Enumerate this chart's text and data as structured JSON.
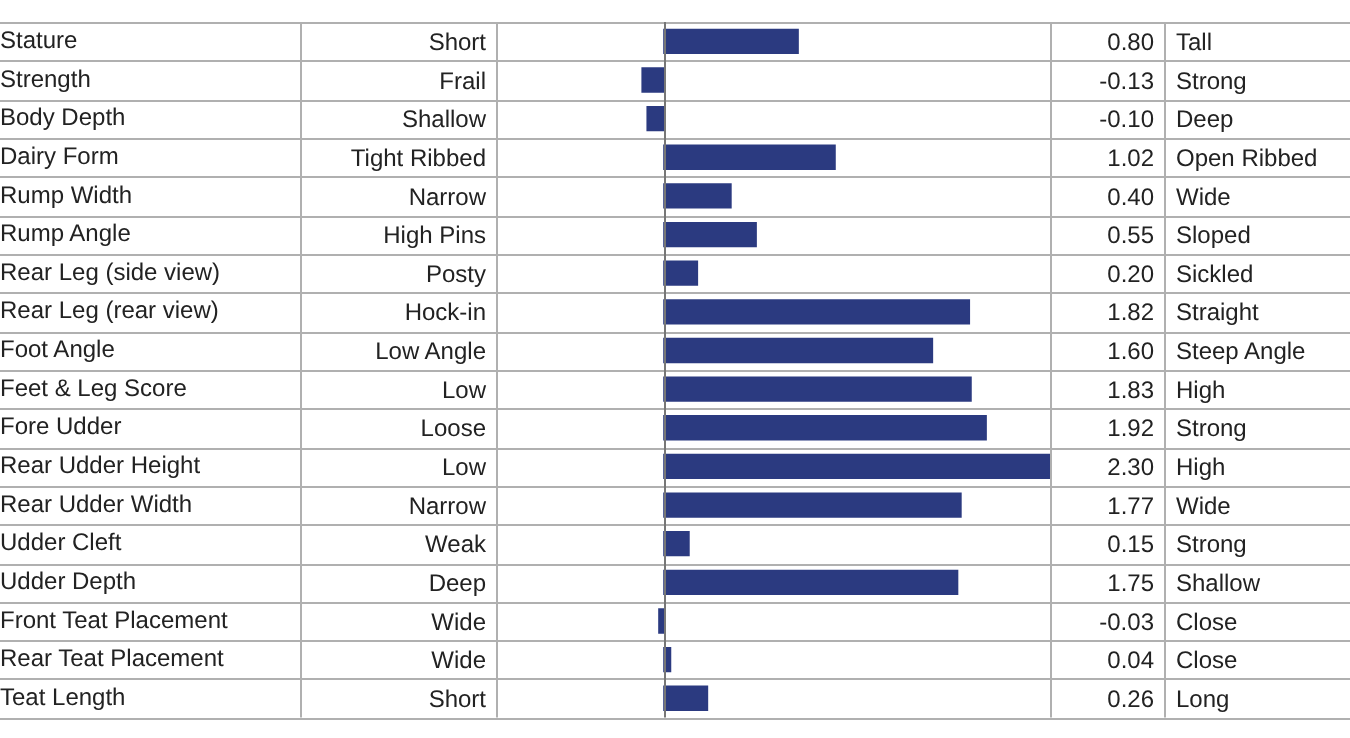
{
  "chart_data": {
    "type": "bar",
    "orientation": "horizontal",
    "categories": [
      "Stature",
      "Strength",
      "Body Depth",
      "Dairy Form",
      "Rump Width",
      "Rump Angle",
      "Rear Leg (side view)",
      "Rear Leg (rear view)",
      "Foot Angle",
      "Feet & Leg Score",
      "Fore Udder",
      "Rear Udder Height",
      "Rear Udder Width",
      "Udder Cleft",
      "Udder Depth",
      "Front Teat Placement",
      "Rear Teat Placement",
      "Teat Length"
    ],
    "values": [
      0.8,
      -0.13,
      -0.1,
      1.02,
      0.4,
      0.55,
      0.2,
      1.82,
      1.6,
      1.83,
      1.92,
      2.3,
      1.77,
      0.15,
      1.75,
      -0.03,
      0.04,
      0.26
    ],
    "value_labels": [
      "0.80",
      "-0.13",
      "-0.10",
      "1.02",
      "0.40",
      "0.55",
      "0.20",
      "1.82",
      "1.60",
      "1.83",
      "1.92",
      "2.30",
      "1.77",
      "0.15",
      "1.75",
      "-0.03",
      "0.04",
      "0.26"
    ],
    "color": "#2b3a80",
    "xlim": [
      -1,
      2.3
    ],
    "annotations": [
      "Short",
      "Tall",
      "Frail",
      "Strong",
      "Shallow",
      "Deep",
      "Tight Ribbed",
      "Open Ribbed",
      "Narrow",
      "Wide",
      "High Pins",
      "Sloped",
      "Posty",
      "Sickled",
      "Hock-in",
      "Straight",
      "Low Angle",
      "Steep Angle",
      "Low",
      "High",
      "Loose",
      "Strong",
      "Low",
      "High",
      "Narrow",
      "Wide",
      "Weak",
      "Strong",
      "Deep",
      "Shallow",
      "Wide",
      "Close",
      "Wide",
      "Close",
      "Short",
      "Long"
    ],
    "legend": false
  }
}
